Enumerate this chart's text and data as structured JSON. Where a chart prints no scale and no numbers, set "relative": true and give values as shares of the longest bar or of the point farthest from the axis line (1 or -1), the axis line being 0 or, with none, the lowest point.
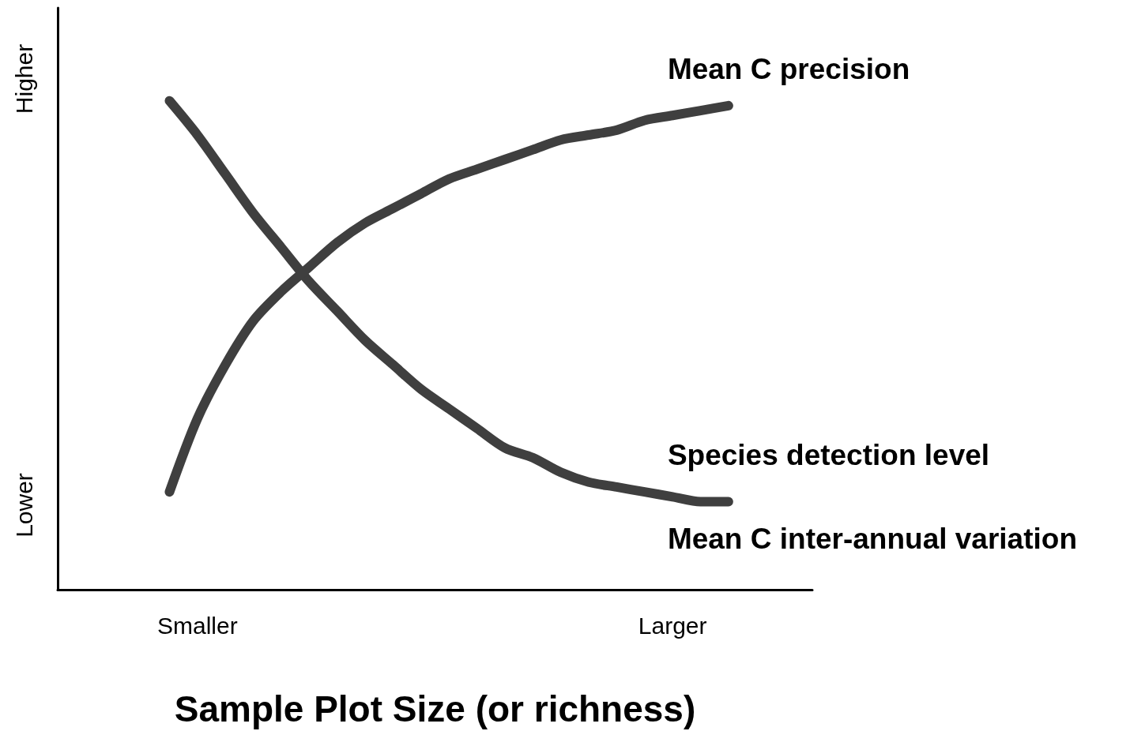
{
  "chart_data": {
    "type": "line",
    "relative": true,
    "xlabel": "Sample Plot Size (or richness)",
    "grid": false,
    "line_style": "solid",
    "categories": [
      null,
      null,
      null,
      null,
      null,
      "Smaller",
      null,
      null,
      null,
      null,
      null,
      null,
      null,
      null,
      null,
      null,
      null,
      null,
      null,
      null,
      null,
      null,
      "Larger",
      null,
      null,
      null,
      null,
      null
    ],
    "series": [
      {
        "color": "#3f3f3f",
        "values": [
          null,
          null,
          null,
          null,
          1.0,
          0.93,
          0.85,
          0.77,
          0.7,
          0.63,
          0.57,
          0.51,
          0.46,
          0.41,
          0.37,
          0.33,
          0.29,
          0.27,
          0.24,
          0.22,
          0.21,
          0.2,
          0.19,
          0.18,
          0.18,
          null,
          null,
          null
        ]
      },
      {
        "color": "#3f3f3f",
        "values": [
          null,
          null,
          null,
          null,
          0.2,
          0.35,
          0.46,
          0.55,
          0.61,
          0.66,
          0.71,
          0.75,
          0.78,
          0.81,
          0.84,
          0.86,
          0.88,
          0.9,
          0.92,
          0.93,
          0.94,
          0.96,
          0.97,
          0.98,
          0.99,
          null,
          null,
          null
        ]
      }
    ],
    "annotations": [
      "Mean C precision",
      "Species detection level",
      "Mean C inter-annual variation",
      "Higher",
      "Lower"
    ]
  }
}
